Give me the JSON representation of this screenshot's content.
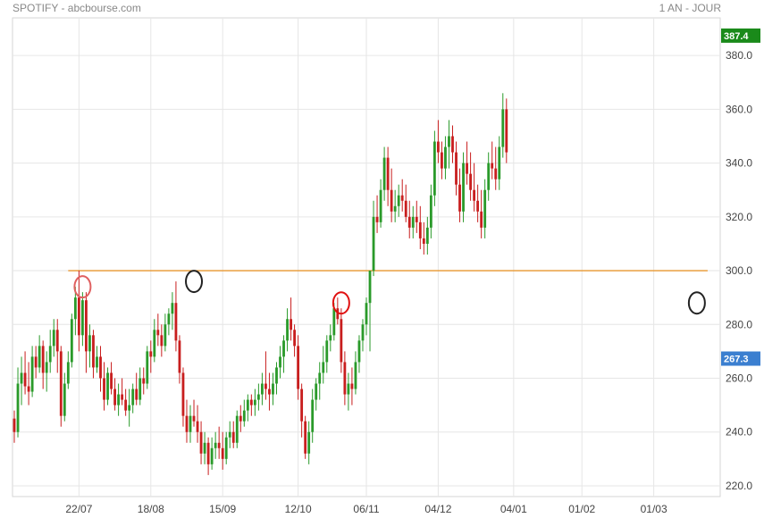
{
  "header": {
    "title": "SPOTIFY - abcbourse.com",
    "period": "1 AN - JOUR"
  },
  "chart_data": {
    "type": "candlestick",
    "title": "SPOTIFY - abcbourse.com",
    "subtitle": "1 AN - JOUR",
    "ylim": [
      216,
      394
    ],
    "y_ticks": [
      220,
      240,
      260,
      280,
      300,
      320,
      340,
      360,
      380
    ],
    "y_tick_labels": [
      "220.0",
      "240.0",
      "260.0",
      "280.0",
      "300.0",
      "320.0",
      "340.0",
      "360.0",
      "380.0"
    ],
    "x_tick_labels": [
      "22/07",
      "18/08",
      "15/09",
      "12/10",
      "06/11",
      "04/12",
      "04/01",
      "01/02",
      "01/03"
    ],
    "x_tick_candle_index": [
      18,
      38,
      58,
      79,
      98,
      118,
      139,
      158,
      178
    ],
    "grid": true,
    "y_axis_position": "right",
    "badges": [
      {
        "label": "387.4",
        "value": 387.4,
        "color": "#1a8a1a"
      },
      {
        "label": "267.3",
        "value": 267.3,
        "color": "#3b7fd0"
      }
    ],
    "resistance_line": {
      "value": 300,
      "color": "#e8962e"
    },
    "markers": [
      {
        "candle_index": 19,
        "value": 294,
        "color": "#e06060",
        "shape": "ellipse"
      },
      {
        "candle_index": 50,
        "value": 296,
        "color": "#222222",
        "shape": "ellipse"
      },
      {
        "candle_index": 91,
        "value": 288,
        "color": "#e01010",
        "shape": "ellipse"
      },
      {
        "candle_index": 190,
        "value": 288,
        "color": "#222222",
        "shape": "ellipse"
      }
    ],
    "colors": {
      "up": "#2a9a2a",
      "down": "#c81e1e"
    },
    "candles": [
      [
        245,
        248,
        236,
        240
      ],
      [
        240,
        264,
        238,
        258
      ],
      [
        258,
        268,
        250,
        262
      ],
      [
        262,
        270,
        254,
        257
      ],
      [
        257,
        266,
        250,
        255
      ],
      [
        255,
        272,
        253,
        268
      ],
      [
        268,
        272,
        260,
        264
      ],
      [
        264,
        276,
        262,
        272
      ],
      [
        272,
        274,
        256,
        262
      ],
      [
        262,
        270,
        255,
        266
      ],
      [
        266,
        278,
        262,
        272
      ],
      [
        272,
        282,
        268,
        278
      ],
      [
        278,
        282,
        262,
        270
      ],
      [
        270,
        272,
        242,
        246
      ],
      [
        246,
        262,
        244,
        258
      ],
      [
        258,
        270,
        256,
        266
      ],
      [
        266,
        284,
        264,
        282
      ],
      [
        282,
        294,
        276,
        290
      ],
      [
        290,
        300,
        270,
        276
      ],
      [
        276,
        292,
        272,
        289
      ],
      [
        289,
        292,
        262,
        270
      ],
      [
        270,
        280,
        264,
        276
      ],
      [
        276,
        278,
        260,
        264
      ],
      [
        264,
        272,
        262,
        268
      ],
      [
        268,
        272,
        255,
        260
      ],
      [
        260,
        266,
        248,
        252
      ],
      [
        252,
        264,
        250,
        262
      ],
      [
        262,
        266,
        254,
        256
      ],
      [
        256,
        260,
        248,
        250
      ],
      [
        250,
        258,
        246,
        254
      ],
      [
        254,
        260,
        250,
        252
      ],
      [
        252,
        256,
        246,
        248
      ],
      [
        248,
        256,
        242,
        250
      ],
      [
        250,
        258,
        247,
        256
      ],
      [
        256,
        262,
        250,
        252
      ],
      [
        252,
        264,
        250,
        260
      ],
      [
        260,
        264,
        254,
        258
      ],
      [
        258,
        272,
        256,
        270
      ],
      [
        270,
        274,
        262,
        268
      ],
      [
        268,
        282,
        266,
        278
      ],
      [
        278,
        284,
        272,
        276
      ],
      [
        276,
        280,
        268,
        272
      ],
      [
        272,
        284,
        270,
        280
      ],
      [
        280,
        286,
        276,
        284
      ],
      [
        284,
        292,
        278,
        288
      ],
      [
        288,
        296,
        270,
        274
      ],
      [
        274,
        276,
        258,
        262
      ],
      [
        262,
        264,
        242,
        246
      ],
      [
        246,
        252,
        236,
        240
      ],
      [
        240,
        250,
        236,
        246
      ],
      [
        246,
        252,
        242,
        244
      ],
      [
        244,
        250,
        236,
        240
      ],
      [
        240,
        244,
        228,
        232
      ],
      [
        232,
        240,
        228,
        236
      ],
      [
        236,
        238,
        224,
        228
      ],
      [
        228,
        238,
        226,
        234
      ],
      [
        234,
        240,
        230,
        236
      ],
      [
        236,
        242,
        230,
        234
      ],
      [
        234,
        240,
        226,
        230
      ],
      [
        230,
        240,
        228,
        238
      ],
      [
        238,
        244,
        234,
        240
      ],
      [
        240,
        244,
        234,
        236
      ],
      [
        236,
        248,
        234,
        246
      ],
      [
        246,
        250,
        240,
        244
      ],
      [
        244,
        252,
        242,
        248
      ],
      [
        248,
        254,
        244,
        252
      ],
      [
        252,
        254,
        246,
        250
      ],
      [
        250,
        256,
        246,
        252
      ],
      [
        252,
        258,
        248,
        254
      ],
      [
        254,
        262,
        250,
        258
      ],
      [
        258,
        270,
        252,
        256
      ],
      [
        256,
        262,
        248,
        254
      ],
      [
        254,
        262,
        250,
        258
      ],
      [
        258,
        266,
        254,
        264
      ],
      [
        264,
        272,
        260,
        268
      ],
      [
        268,
        276,
        262,
        274
      ],
      [
        274,
        286,
        270,
        282
      ],
      [
        282,
        290,
        274,
        278
      ],
      [
        278,
        280,
        268,
        272
      ],
      [
        272,
        276,
        252,
        256
      ],
      [
        256,
        258,
        238,
        244
      ],
      [
        244,
        246,
        230,
        232
      ],
      [
        232,
        244,
        228,
        240
      ],
      [
        240,
        256,
        236,
        252
      ],
      [
        252,
        260,
        248,
        258
      ],
      [
        258,
        266,
        252,
        262
      ],
      [
        262,
        272,
        258,
        266
      ],
      [
        266,
        276,
        262,
        274
      ],
      [
        274,
        280,
        270,
        276
      ],
      [
        276,
        288,
        274,
        286
      ],
      [
        286,
        290,
        280,
        282
      ],
      [
        282,
        286,
        262,
        266
      ],
      [
        266,
        270,
        250,
        254
      ],
      [
        254,
        262,
        248,
        258
      ],
      [
        258,
        264,
        250,
        256
      ],
      [
        256,
        270,
        254,
        266
      ],
      [
        266,
        276,
        262,
        274
      ],
      [
        274,
        282,
        270,
        280
      ],
      [
        280,
        290,
        276,
        288
      ],
      [
        288,
        300,
        270,
        300
      ],
      [
        300,
        326,
        298,
        320
      ],
      [
        320,
        328,
        314,
        318
      ],
      [
        318,
        334,
        316,
        330
      ],
      [
        330,
        346,
        326,
        342
      ],
      [
        342,
        346,
        324,
        330
      ],
      [
        330,
        338,
        318,
        322
      ],
      [
        322,
        330,
        318,
        324
      ],
      [
        324,
        332,
        320,
        328
      ],
      [
        328,
        334,
        322,
        326
      ],
      [
        326,
        332,
        318,
        320
      ],
      [
        320,
        326,
        312,
        316
      ],
      [
        316,
        324,
        312,
        320
      ],
      [
        320,
        326,
        314,
        318
      ],
      [
        318,
        324,
        308,
        312
      ],
      [
        312,
        318,
        306,
        310
      ],
      [
        310,
        320,
        306,
        316
      ],
      [
        316,
        332,
        312,
        328
      ],
      [
        328,
        352,
        324,
        348
      ],
      [
        348,
        356,
        340,
        344
      ],
      [
        344,
        348,
        334,
        338
      ],
      [
        338,
        350,
        334,
        346
      ],
      [
        346,
        356,
        338,
        350
      ],
      [
        350,
        354,
        340,
        344
      ],
      [
        344,
        348,
        328,
        332
      ],
      [
        332,
        338,
        318,
        322
      ],
      [
        322,
        344,
        318,
        340
      ],
      [
        340,
        348,
        332,
        336
      ],
      [
        336,
        344,
        326,
        330
      ],
      [
        330,
        340,
        322,
        326
      ],
      [
        326,
        332,
        318,
        322
      ],
      [
        322,
        330,
        312,
        316
      ],
      [
        316,
        334,
        312,
        330
      ],
      [
        330,
        344,
        326,
        340
      ],
      [
        340,
        348,
        334,
        338
      ],
      [
        338,
        346,
        330,
        334
      ],
      [
        334,
        350,
        330,
        346
      ],
      [
        346,
        366,
        342,
        360
      ],
      [
        360,
        364,
        340,
        344
      ]
    ]
  }
}
